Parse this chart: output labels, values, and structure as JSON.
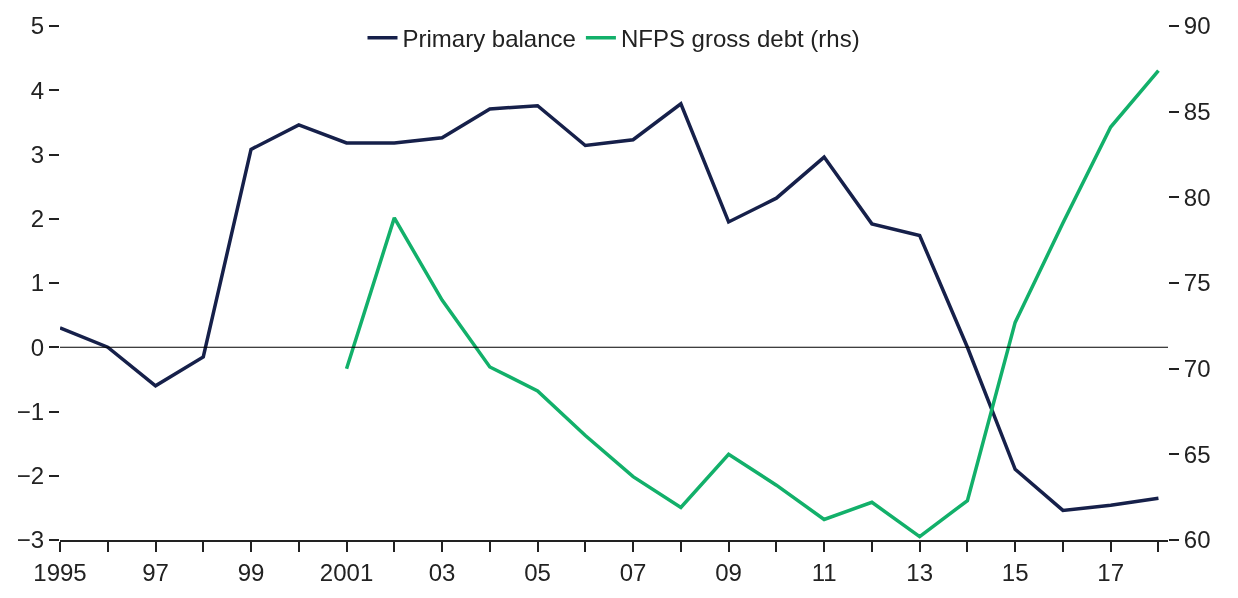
{
  "chart_data": {
    "type": "line",
    "x": [
      1995,
      1996,
      1997,
      1998,
      1999,
      2000,
      2001,
      2002,
      2003,
      2004,
      2005,
      2006,
      2007,
      2008,
      2009,
      2010,
      2011,
      2012,
      2013,
      2014,
      2015,
      2016,
      2017,
      2018
    ],
    "series": [
      {
        "name": "Primary balance",
        "color": "#16204a",
        "values": [
          0.3,
          0.0,
          -0.6,
          -0.15,
          3.08,
          3.46,
          3.18,
          3.18,
          3.26,
          3.71,
          3.76,
          3.14,
          3.23,
          3.79,
          1.95,
          2.32,
          2.96,
          1.92,
          1.74,
          0.0,
          -1.9,
          -2.54,
          -2.46,
          -2.35
        ]
      },
      {
        "name": "NFPS gross debt (rhs)",
        "color": "#12b06a",
        "axis": "y2",
        "values": [
          null,
          null,
          null,
          null,
          null,
          null,
          70.0,
          78.8,
          74.0,
          70.1,
          68.7,
          66.1,
          63.7,
          61.9,
          65.0,
          63.2,
          61.2,
          62.2,
          60.2,
          62.3,
          72.7,
          78.5,
          84.1,
          87.4
        ]
      }
    ],
    "xlim": [
      1995,
      2018.2
    ],
    "xticks": [
      {
        "value": 1995,
        "label": "1995"
      },
      {
        "value": 1996,
        "label": null
      },
      {
        "value": 1997,
        "label": "97"
      },
      {
        "value": 1998,
        "label": null
      },
      {
        "value": 1999,
        "label": "99"
      },
      {
        "value": 2000,
        "label": null
      },
      {
        "value": 2001,
        "label": "2001"
      },
      {
        "value": 2002,
        "label": null
      },
      {
        "value": 2003,
        "label": "03"
      },
      {
        "value": 2004,
        "label": null
      },
      {
        "value": 2005,
        "label": "05"
      },
      {
        "value": 2006,
        "label": null
      },
      {
        "value": 2007,
        "label": "07"
      },
      {
        "value": 2008,
        "label": null
      },
      {
        "value": 2009,
        "label": "09"
      },
      {
        "value": 2010,
        "label": null
      },
      {
        "value": 2011,
        "label": "11"
      },
      {
        "value": 2012,
        "label": null
      },
      {
        "value": 2013,
        "label": "13"
      },
      {
        "value": 2014,
        "label": null
      },
      {
        "value": 2015,
        "label": "15"
      },
      {
        "value": 2016,
        "label": null
      },
      {
        "value": 2017,
        "label": "17"
      },
      {
        "value": 2018,
        "label": null
      }
    ],
    "ylim": [
      -3,
      5
    ],
    "yticks": [
      -3,
      -2,
      -1,
      0,
      1,
      2,
      3,
      4,
      5
    ],
    "y2lim": [
      60,
      90
    ],
    "y2ticks": [
      60,
      65,
      70,
      75,
      80,
      85,
      90
    ],
    "ref_lines": [
      {
        "axis": "y",
        "value": 0,
        "color": "#000000"
      }
    ],
    "grid": false,
    "legend": "top",
    "marker": "none",
    "line_style": "solid"
  }
}
